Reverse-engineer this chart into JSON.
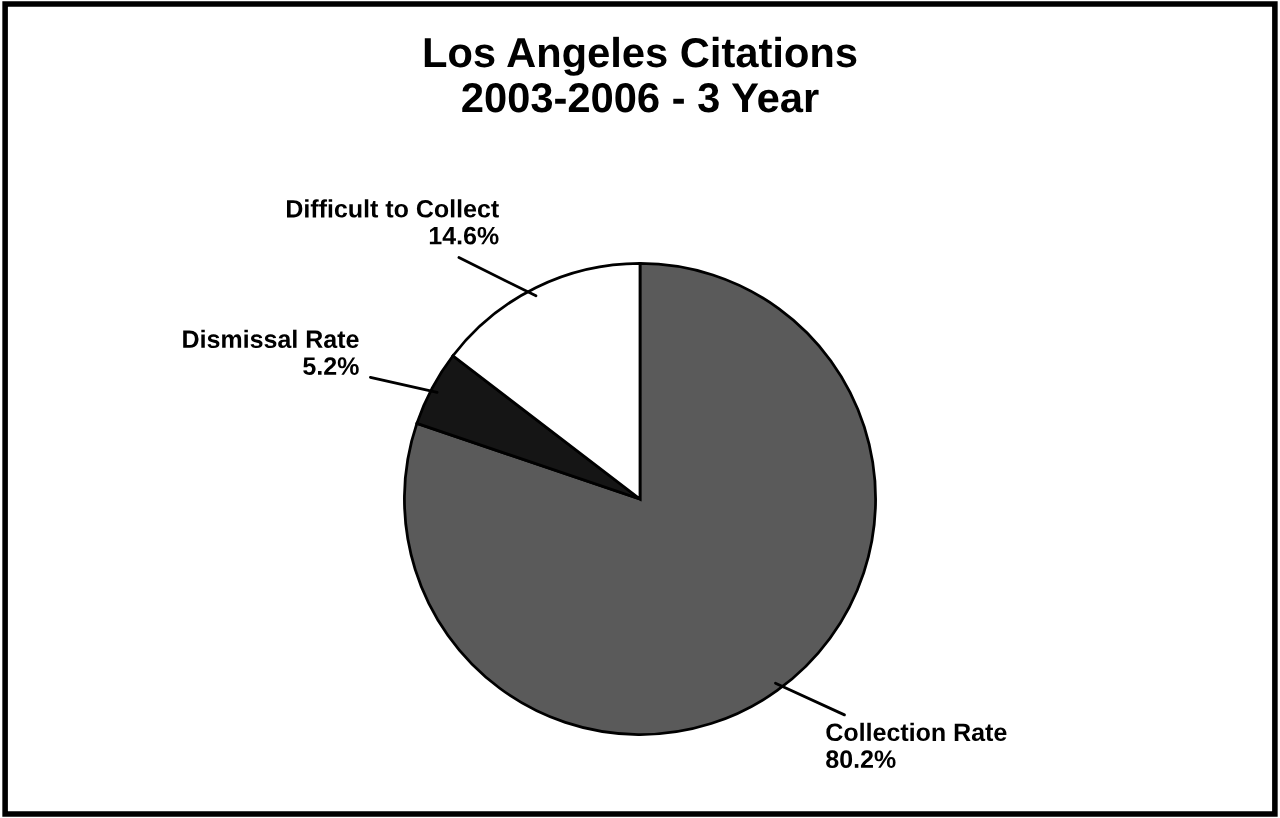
{
  "chart_data": {
    "type": "pie",
    "title": "Los Angeles Citations\n2003-2006 - 3 Year",
    "categories": [
      "Collection Rate",
      "Dismissal Rate",
      "Difficult to Collect"
    ],
    "values": [
      80.2,
      5.2,
      14.6
    ],
    "colors": [
      "#5a5a5a",
      "#151515",
      "#ffffff"
    ],
    "value_labels": [
      "80.2%",
      "5.2%",
      "14.6%"
    ],
    "legend": false
  }
}
